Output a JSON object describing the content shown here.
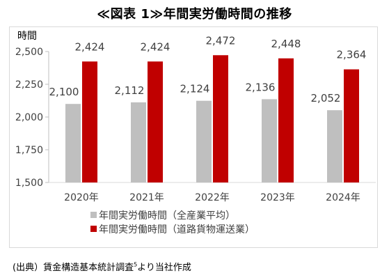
{
  "header": {
    "title": "≪図表 1≫年間実労働時間の推移"
  },
  "chart_data": {
    "type": "bar",
    "title": "",
    "ylabel": "時間",
    "xlabel": "",
    "categories": [
      "2020年",
      "2021年",
      "2022年",
      "2023年",
      "2024年"
    ],
    "series": [
      {
        "name": "年間実労働時間（全産業平均）",
        "color": "#bfbfbf",
        "values": [
          2100,
          2112,
          2124,
          2136,
          2052
        ]
      },
      {
        "name": "年間実労働時間（道路貨物運送業）",
        "color": "#c00000",
        "values": [
          2424,
          2424,
          2472,
          2448,
          2364
        ]
      }
    ],
    "ylim": [
      1500,
      2500
    ],
    "yticks": [
      "1,500",
      "1,750",
      "2,000",
      "2,250",
      "2,500"
    ],
    "ytick_values": [
      1500,
      1750,
      2000,
      2250,
      2500
    ],
    "data_labels": [
      [
        "2,100",
        "2,112",
        "2,124",
        "2,136",
        "2,052"
      ],
      [
        "2,424",
        "2,424",
        "2,472",
        "2,448",
        "2,364"
      ]
    ],
    "legend_position": "bottom",
    "grid": false
  },
  "footer": {
    "source_prefix": "(出典）賃金構造基本統計調査",
    "source_sup": "5",
    "source_suffix": "より当社作成"
  }
}
